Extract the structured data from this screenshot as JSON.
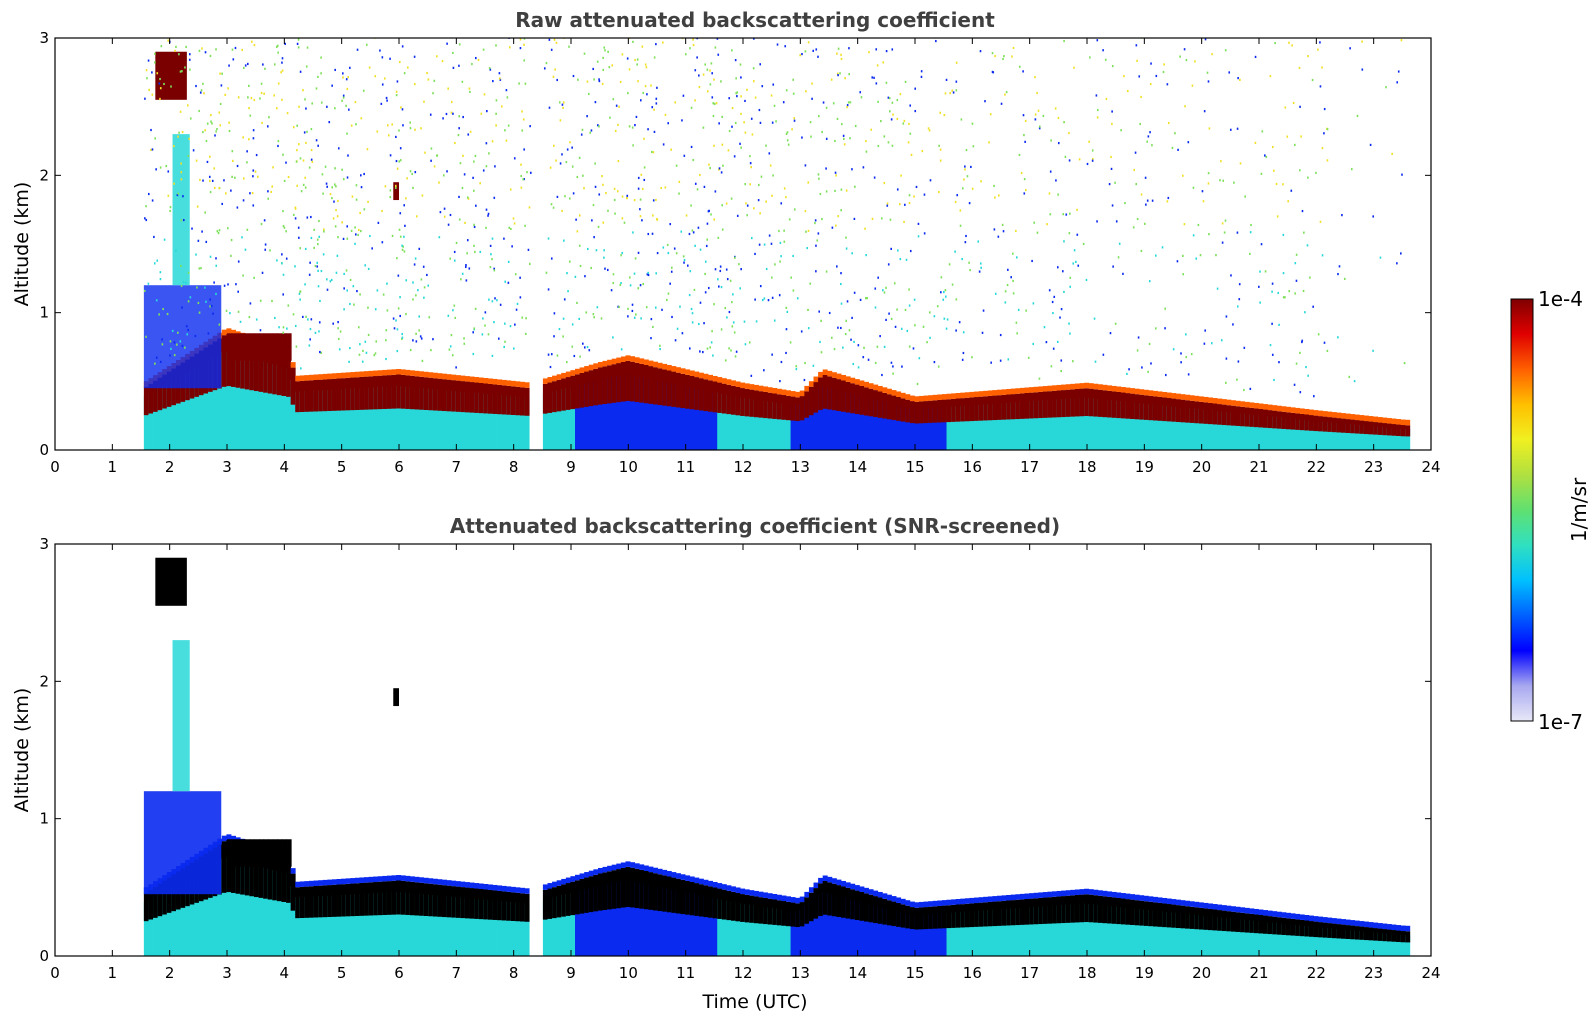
{
  "colors": {
    "deep_red": "#7a0000",
    "black_core": "#000000",
    "cyan": "#28d8d8",
    "blue": "#0a2af0",
    "green": "#7ee05a",
    "yellow": "#f0e028",
    "title_gray": "#404040"
  },
  "chart_data": [
    {
      "type": "heatmap",
      "id": "raw",
      "title": "Raw attenuated backscattering coefficient",
      "xlabel": "",
      "ylabel": "Altitude (km)",
      "xlim": [
        0,
        24
      ],
      "ylim": [
        0,
        3
      ],
      "xticks": [
        "0",
        "1",
        "2",
        "3",
        "4",
        "5",
        "6",
        "7",
        "8",
        "9",
        "10",
        "11",
        "12",
        "13",
        "14",
        "15",
        "16",
        "17",
        "18",
        "19",
        "20",
        "21",
        "22",
        "23",
        "24"
      ],
      "yticks": [
        "0",
        "1",
        "2",
        "3"
      ],
      "data_start_hour": 1.55,
      "data_end_hour": 23.55,
      "gap_hours": [
        8.3,
        8.5
      ],
      "aerosol_layer_top_km": [
        {
          "t": 1.55,
          "h": 0.45
        },
        {
          "t": 3.0,
          "h": 0.85
        },
        {
          "t": 4.1,
          "h": 0.7
        },
        {
          "t": 4.2,
          "h": 0.5
        },
        {
          "t": 6.0,
          "h": 0.55
        },
        {
          "t": 8.3,
          "h": 0.45
        },
        {
          "t": 9.5,
          "h": 0.6
        },
        {
          "t": 10.0,
          "h": 0.65
        },
        {
          "t": 12.0,
          "h": 0.45
        },
        {
          "t": 13.0,
          "h": 0.38
        },
        {
          "t": 13.4,
          "h": 0.55
        },
        {
          "t": 15.0,
          "h": 0.35
        },
        {
          "t": 18.0,
          "h": 0.45
        },
        {
          "t": 20.0,
          "h": 0.35
        },
        {
          "t": 22.0,
          "h": 0.25
        },
        {
          "t": 23.55,
          "h": 0.18
        }
      ]
    },
    {
      "type": "heatmap",
      "id": "screened",
      "title": "Attenuated backscattering coefficient (SNR-screened)",
      "xlabel": "Time (UTC)",
      "ylabel": "Altitude (km)",
      "xlim": [
        0,
        24
      ],
      "ylim": [
        0,
        3
      ],
      "xticks": [
        "0",
        "1",
        "2",
        "3",
        "4",
        "5",
        "6",
        "7",
        "8",
        "9",
        "10",
        "11",
        "12",
        "13",
        "14",
        "15",
        "16",
        "17",
        "18",
        "19",
        "20",
        "21",
        "22",
        "23",
        "24"
      ],
      "yticks": [
        "0",
        "1",
        "2",
        "3"
      ],
      "data_start_hour": 1.55,
      "data_end_hour": 23.55,
      "gap_hours": [
        8.3,
        8.5
      ]
    }
  ],
  "colorbar": {
    "label": "1/m/sr",
    "max_label": "1e-4",
    "min_label": "1e-7",
    "stops": [
      "#e8e8f8",
      "#a8a8f0",
      "#0000ff",
      "#0060ff",
      "#00c0ff",
      "#30e0c0",
      "#60e070",
      "#b0e040",
      "#f0f020",
      "#ffc000",
      "#ff6000",
      "#e00000",
      "#800000"
    ]
  }
}
